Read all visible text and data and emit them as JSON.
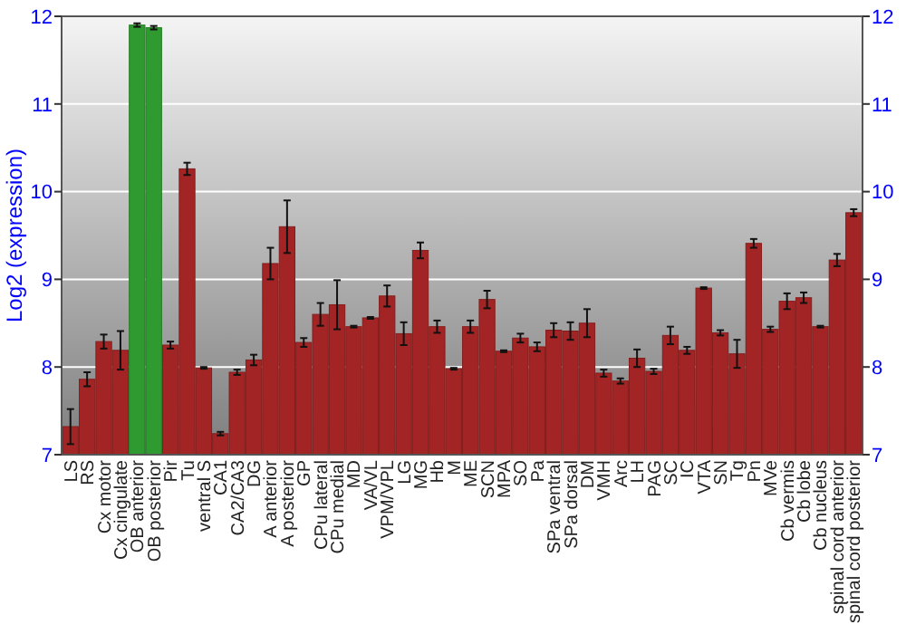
{
  "chart_data": {
    "type": "bar",
    "ylabel": "Log2 (expression)",
    "categories": [
      "LS",
      "RS",
      "Cx motor",
      "Cx cingulate",
      "OB anterior",
      "OB posterior",
      "Pir",
      "Tu",
      "ventral S",
      "CA1",
      "CA2/CA3",
      "DG",
      "A anterior",
      "A posterior",
      "GP",
      "CPu lateral",
      "CPu medial",
      "MD",
      "VA/VL",
      "VPM/VPL",
      "LG",
      "MG",
      "Hb",
      "M",
      "ME",
      "SCN",
      "MPA",
      "SO",
      "Pa",
      "SPa ventral",
      "SPa dorsal",
      "DM",
      "VMH",
      "Arc",
      "LH",
      "PAG",
      "SC",
      "IC",
      "VTA",
      "SN",
      "Tg",
      "Pn",
      "MVe",
      "Cb vermis",
      "Cb lobe",
      "Cb nucleus",
      "spinal cord anterior",
      "spinal cord posterior"
    ],
    "values": [
      7.32,
      7.86,
      8.29,
      8.19,
      11.9,
      11.87,
      8.25,
      10.26,
      7.99,
      7.24,
      7.94,
      8.08,
      9.18,
      9.6,
      8.28,
      8.6,
      8.71,
      8.46,
      8.56,
      8.81,
      8.38,
      9.33,
      8.46,
      7.98,
      8.46,
      8.77,
      8.18,
      8.33,
      8.23,
      8.42,
      8.41,
      8.5,
      7.93,
      7.84,
      8.1,
      7.95,
      8.36,
      8.19,
      8.9,
      8.39,
      8.15,
      9.41,
      8.43,
      8.75,
      8.79,
      8.46,
      9.22,
      9.76
    ],
    "errors": [
      0.2,
      0.08,
      0.08,
      0.22,
      0.02,
      0.02,
      0.04,
      0.07,
      0.01,
      0.02,
      0.03,
      0.06,
      0.18,
      0.3,
      0.05,
      0.13,
      0.28,
      0.01,
      0.01,
      0.12,
      0.13,
      0.09,
      0.07,
      0.01,
      0.07,
      0.1,
      0.01,
      0.05,
      0.05,
      0.08,
      0.1,
      0.16,
      0.04,
      0.03,
      0.1,
      0.03,
      0.1,
      0.04,
      0.01,
      0.03,
      0.16,
      0.05,
      0.03,
      0.09,
      0.06,
      0.01,
      0.07,
      0.04
    ],
    "colors": [
      "#a32424",
      "#a32424",
      "#a32424",
      "#a32424",
      "#2f9a2f",
      "#2f9a2f",
      "#a32424",
      "#a32424",
      "#a32424",
      "#a32424",
      "#a32424",
      "#a32424",
      "#a32424",
      "#a32424",
      "#a32424",
      "#a32424",
      "#a32424",
      "#a32424",
      "#a32424",
      "#a32424",
      "#a32424",
      "#a32424",
      "#a32424",
      "#a32424",
      "#a32424",
      "#a32424",
      "#a32424",
      "#a32424",
      "#a32424",
      "#a32424",
      "#a32424",
      "#a32424",
      "#a32424",
      "#a32424",
      "#a32424",
      "#a32424",
      "#a32424",
      "#a32424",
      "#a32424",
      "#a32424",
      "#a32424",
      "#a32424",
      "#a32424",
      "#a32424",
      "#a32424",
      "#a32424",
      "#a32424",
      "#a32424"
    ],
    "ylim": [
      7,
      12
    ],
    "yticks": [
      7,
      8,
      9,
      10,
      11,
      12
    ],
    "y2lim": [
      7,
      12
    ],
    "y2ticks": [
      7,
      8,
      9,
      10,
      11,
      12
    ],
    "grid": "y"
  }
}
